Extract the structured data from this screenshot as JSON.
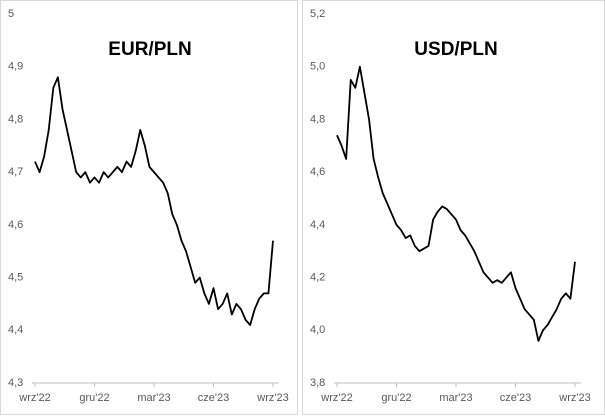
{
  "chart_data": [
    {
      "type": "line",
      "title": "EUR/PLN",
      "color": "#000000",
      "categories": [
        "wrz'22",
        null,
        null,
        null,
        null,
        null,
        null,
        null,
        null,
        null,
        null,
        null,
        null,
        "gru'22",
        null,
        null,
        null,
        null,
        null,
        null,
        null,
        null,
        null,
        null,
        null,
        null,
        "mar'23",
        null,
        null,
        null,
        null,
        null,
        null,
        null,
        null,
        null,
        null,
        null,
        null,
        "cze'23",
        null,
        null,
        null,
        null,
        null,
        null,
        null,
        null,
        null,
        null,
        null,
        null,
        "wrz'23"
      ],
      "values": [
        4.72,
        4.7,
        4.73,
        4.78,
        4.86,
        4.88,
        4.82,
        4.78,
        4.74,
        4.7,
        4.69,
        4.7,
        4.68,
        4.69,
        4.68,
        4.7,
        4.69,
        4.7,
        4.71,
        4.7,
        4.72,
        4.71,
        4.74,
        4.78,
        4.75,
        4.71,
        4.7,
        4.69,
        4.68,
        4.66,
        4.62,
        4.6,
        4.57,
        4.55,
        4.52,
        4.49,
        4.5,
        4.47,
        4.45,
        4.48,
        4.44,
        4.45,
        4.47,
        4.43,
        4.45,
        4.44,
        4.42,
        4.41,
        4.44,
        4.46,
        4.47,
        4.47,
        4.57
      ],
      "ylim": [
        4.3,
        5
      ],
      "yticks": [
        {
          "value": 4.3,
          "label": "4,3"
        },
        {
          "value": 4.4,
          "label": "4,4"
        },
        {
          "value": 4.5,
          "label": "4,5"
        },
        {
          "value": 4.6,
          "label": "4,6"
        },
        {
          "value": 4.7,
          "label": "4,7"
        },
        {
          "value": 4.8,
          "label": "4,8"
        },
        {
          "value": 4.9,
          "label": "4,9"
        },
        5
      ]
    },
    {
      "type": "line",
      "title": "USD/PLN",
      "color": "#000000",
      "categories": [
        "wrz'22",
        null,
        null,
        null,
        null,
        null,
        null,
        null,
        null,
        null,
        null,
        null,
        null,
        "gru'22",
        null,
        null,
        null,
        null,
        null,
        null,
        null,
        null,
        null,
        null,
        null,
        null,
        "mar'23",
        null,
        null,
        null,
        null,
        null,
        null,
        null,
        null,
        null,
        null,
        null,
        null,
        "cze'23",
        null,
        null,
        null,
        null,
        null,
        null,
        null,
        null,
        null,
        null,
        null,
        null,
        "wrz'23"
      ],
      "values": [
        4.74,
        4.7,
        4.65,
        4.95,
        4.92,
        5.0,
        4.9,
        4.8,
        4.65,
        4.58,
        4.52,
        4.48,
        4.44,
        4.4,
        4.38,
        4.35,
        4.36,
        4.32,
        4.3,
        4.31,
        4.32,
        4.42,
        4.45,
        4.47,
        4.46,
        4.44,
        4.42,
        4.38,
        4.36,
        4.33,
        4.3,
        4.26,
        4.22,
        4.2,
        4.18,
        4.19,
        4.18,
        4.2,
        4.22,
        4.16,
        4.12,
        4.08,
        4.06,
        4.04,
        3.96,
        4.0,
        4.02,
        4.05,
        4.08,
        4.12,
        4.14,
        4.12,
        4.26
      ],
      "ylim": [
        3.8,
        5.2
      ],
      "yticks": [
        {
          "value": 3.8,
          "label": "3,8"
        },
        {
          "value": 4,
          "label": "4,0"
        },
        {
          "value": 4.2,
          "label": "4,2"
        },
        {
          "value": 4.4,
          "label": "4,4"
        },
        {
          "value": 4.6,
          "label": "4,6"
        },
        {
          "value": 4.8,
          "label": "4,8"
        },
        {
          "value": 5,
          "label": "5,0"
        },
        {
          "value": 5.2,
          "label": "5,2"
        }
      ]
    }
  ]
}
